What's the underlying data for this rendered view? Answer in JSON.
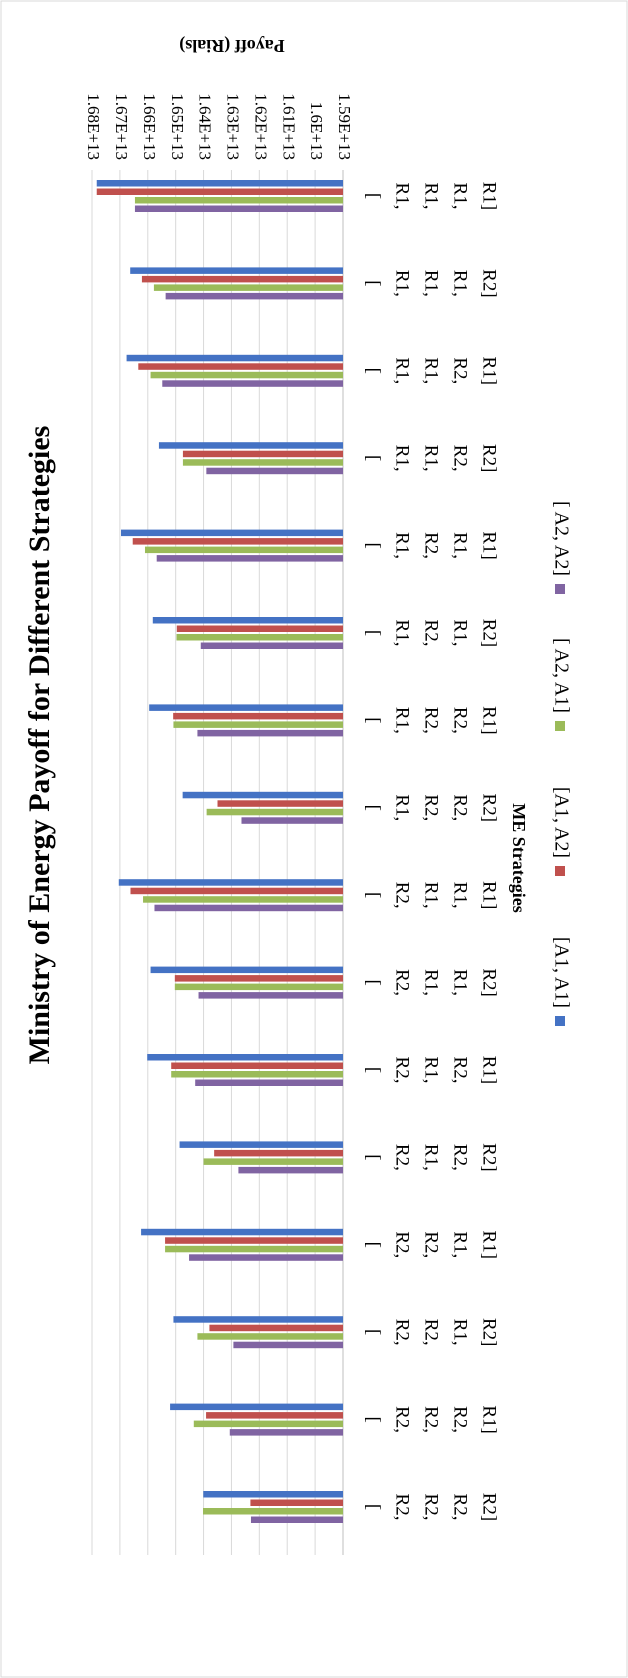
{
  "chart_data": {
    "type": "bar",
    "orientation": "horizontal",
    "rotated": "90 degrees clockwise",
    "title": "Ministry of Energy Payoff for Different Strategies",
    "xlabel": "ME Strategies",
    "ylabel": "Payoff (Rials)",
    "ylim": [
      15900000000000.0,
      16800000000000.0
    ],
    "yticks": [
      "1.59E+13",
      "1.6E+13",
      "1.61E+13",
      "1.62E+13",
      "1.63E+13",
      "1.64E+13",
      "1.65E+13",
      "1.66E+13",
      "1.67E+13",
      "1.68E+13"
    ],
    "grid": true,
    "legend_position": "bottom",
    "categories": [
      [
        "[",
        "R1,",
        "R1,",
        "R1,",
        "R1]"
      ],
      [
        "[",
        "R1,",
        "R1,",
        "R1,",
        "R2]"
      ],
      [
        "[",
        "R1,",
        "R1,",
        "R2,",
        "R1]"
      ],
      [
        "[",
        "R1,",
        "R1,",
        "R2,",
        "R2]"
      ],
      [
        "[",
        "R1,",
        "R2,",
        "R1,",
        "R1]"
      ],
      [
        "[",
        "R1,",
        "R2,",
        "R1,",
        "R2]"
      ],
      [
        "[",
        "R1,",
        "R2,",
        "R2,",
        "R1]"
      ],
      [
        "[",
        "R1,",
        "R2,",
        "R2,",
        "R2]"
      ],
      [
        "[",
        "R2,",
        "R1,",
        "R1,",
        "R1]"
      ],
      [
        "[",
        "R2,",
        "R1,",
        "R1,",
        "R2]"
      ],
      [
        "[",
        "R2,",
        "R1,",
        "R2,",
        "R1]"
      ],
      [
        "[",
        "R2,",
        "R1,",
        "R2,",
        "R2]"
      ],
      [
        "[",
        "R2,",
        "R2,",
        "R1,",
        "R1]"
      ],
      [
        "[",
        "R2,",
        "R2,",
        "R1,",
        "R2]"
      ],
      [
        "[",
        "R2,",
        "R2,",
        "R2,",
        "R1]"
      ],
      [
        "[",
        "R2,",
        "R2,",
        "R2,",
        "R2]"
      ]
    ],
    "series": [
      {
        "name": "[A1, A1]",
        "color": "#4472C4",
        "values": [
          16783000000000.0,
          16663000000000.0,
          16676000000000.0,
          16560000000000.0,
          16696000000000.0,
          16582000000000.0,
          16595000000000.0,
          16475000000000.0,
          16704000000000.0,
          16590000000000.0,
          16602000000000.0,
          16486000000000.0,
          16624000000000.0,
          16508000000000.0,
          16520000000000.0,
          16401000000000.0
        ]
      },
      {
        "name": "[A1, A2]",
        "color": "#C0504D",
        "values": [
          16783000000000.0,
          16621000000000.0,
          16634000000000.0,
          16474000000000.0,
          16654000000000.0,
          16496000000000.0,
          16509000000000.0,
          16350000000000.0,
          16662000000000.0,
          16503000000000.0,
          16516000000000.0,
          16362000000000.0,
          16538000000000.0,
          16379000000000.0,
          16391000000000.0,
          16232000000000.0
        ]
      },
      {
        "name": "[ A2, A1]",
        "color": "#9BBB59",
        "values": [
          16646000000000.0,
          16578000000000.0,
          16590000000000.0,
          16474000000000.0,
          16610000000000.0,
          16497000000000.0,
          16508000000000.0,
          16389000000000.0,
          16617000000000.0,
          16503000000000.0,
          16516000000000.0,
          16400000000000.0,
          16538000000000.0,
          16422000000000.0,
          16435000000000.0,
          16402000000000.0
        ]
      },
      {
        "name": "[ A2, A2]",
        "color": "#8064A2",
        "values": [
          16646000000000.0,
          16536000000000.0,
          16548000000000.0,
          16390000000000.0,
          16568000000000.0,
          16410000000000.0,
          16422000000000.0,
          16264000000000.0,
          16576000000000.0,
          16418000000000.0,
          16430000000000.0,
          16275000000000.0,
          16452000000000.0,
          16293000000000.0,
          16306000000000.0,
          16230000000000.0
        ]
      }
    ]
  }
}
